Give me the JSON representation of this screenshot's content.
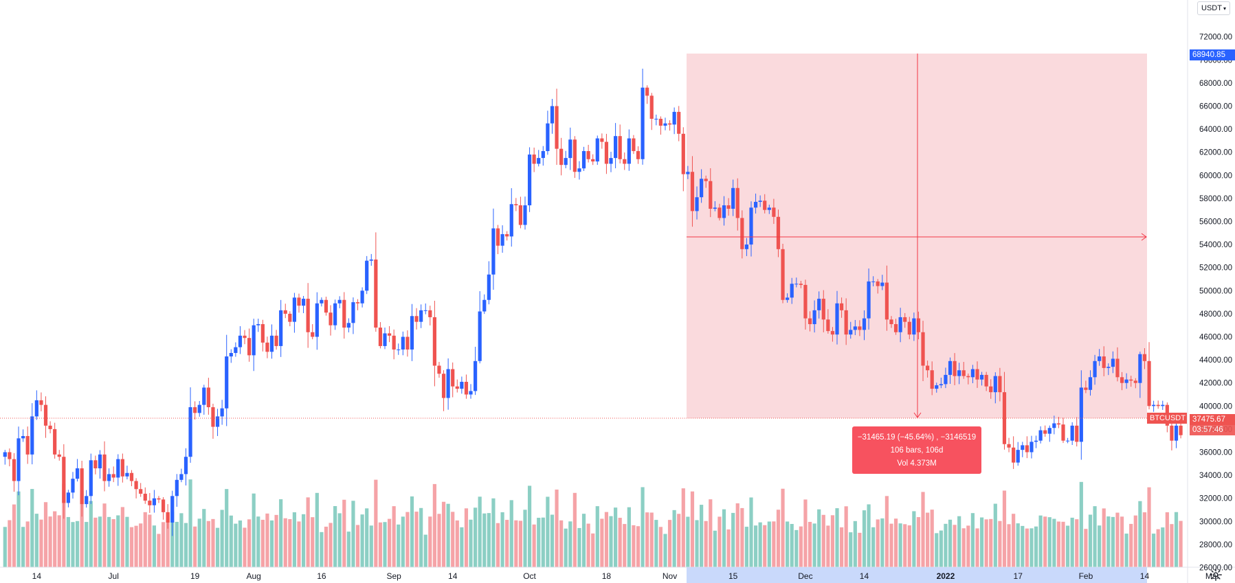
{
  "chart_data": {
    "type": "candlestick",
    "symbol": "BTCUSDT",
    "currency_label": "USDT",
    "y_axis": {
      "min": 25000,
      "max": 72000,
      "ticks": [
        26000,
        28000,
        30000,
        32000,
        34000,
        36000,
        38000,
        40000,
        42000,
        44000,
        46000,
        48000,
        50000,
        52000,
        54000,
        56000,
        58000,
        60000,
        62000,
        64000,
        66000,
        68000,
        70000,
        72000
      ]
    },
    "x_axis": {
      "first_date": "2021-06-07",
      "last_date": "2022-02-24",
      "ticks": [
        {
          "label": "14",
          "date": "2021-06-14"
        },
        {
          "label": "Jul",
          "date": "2021-07-01"
        },
        {
          "label": "19",
          "date": "2021-07-19"
        },
        {
          "label": "Aug",
          "date": "2021-08-01"
        },
        {
          "label": "16",
          "date": "2021-08-16"
        },
        {
          "label": "Sep",
          "date": "2021-09-01"
        },
        {
          "label": "14",
          "date": "2021-09-14"
        },
        {
          "label": "Oct",
          "date": "2021-10-01"
        },
        {
          "label": "18",
          "date": "2021-10-18"
        },
        {
          "label": "Nov",
          "date": "2021-11-01"
        },
        {
          "label": "15",
          "date": "2021-11-15"
        },
        {
          "label": "Dec",
          "date": "2021-12-01"
        },
        {
          "label": "14",
          "date": "2021-12-14"
        },
        {
          "label": "2022",
          "date": "2022-01-01"
        },
        {
          "label": "17",
          "date": "2022-01-17"
        },
        {
          "label": "Feb",
          "date": "2022-02-01"
        },
        {
          "label": "14",
          "date": "2022-02-14"
        },
        {
          "label": "Mar",
          "date": "2022-03-01"
        }
      ]
    },
    "closes": [
      36000,
      35400,
      33500,
      37200,
      37400,
      35800,
      39100,
      40500,
      40100,
      38300,
      38000,
      35800,
      35600,
      31600,
      32500,
      33700,
      34600,
      31500,
      32200,
      35300,
      34600,
      35800,
      33500,
      34100,
      33800,
      35400,
      33900,
      34200,
      33500,
      32800,
      32400,
      31800,
      31400,
      32000,
      31900,
      30800,
      29900,
      32200,
      33600,
      34100,
      35600,
      39900,
      39400,
      40100,
      41600,
      39900,
      38200,
      39100,
      39800,
      44300,
      44600,
      45100,
      46100,
      45900,
      44400,
      47000,
      47100,
      45500,
      44700,
      46100,
      45200,
      48300,
      48000,
      47300,
      49400,
      48700,
      49300,
      46400,
      46000,
      48900,
      49200,
      48100,
      47000,
      48900,
      49200,
      46800,
      47200,
      49000,
      48900,
      50000,
      52600,
      52700,
      46800,
      45200,
      46300,
      46100,
      44900,
      44900,
      46000,
      44900,
      47800,
      47300,
      48300,
      48300,
      47700,
      43500,
      42800,
      40700,
      43200,
      41700,
      41500,
      42100,
      41000,
      41300,
      43900,
      48200,
      49200,
      51400,
      55400,
      53900,
      54900,
      54700,
      57500,
      57400,
      55700,
      57400,
      61800,
      61000,
      61500,
      62100,
      64500,
      66000,
      62300,
      60900,
      61500,
      63100,
      60300,
      60600,
      62100,
      61400,
      61200,
      63200,
      62900,
      61000,
      61500,
      63400,
      61400,
      61000,
      63200,
      62100,
      61400,
      67600,
      66900,
      64900,
      64900,
      64300,
      64500,
      64400,
      65500,
      63600,
      60100,
      60300,
      56900,
      58100,
      59700,
      59500,
      57100,
      57200,
      56300,
      57400,
      57100,
      58900,
      56300,
      53600,
      54000,
      57200,
      57700,
      57800,
      57000,
      57200,
      56400,
      53600,
      49200,
      49400,
      50600,
      50600,
      50500,
      47600,
      47100,
      48300,
      49300,
      47500,
      46500,
      46200,
      48900,
      48300,
      46200,
      46600,
      46900,
      46600,
      47600,
      50800,
      50800,
      50400,
      50700,
      47500,
      47100,
      46400,
      47700,
      47300,
      46200,
      47600,
      46400,
      43500,
      43100,
      41500,
      41800,
      41900,
      42700,
      43900,
      42600,
      43100,
      42600,
      42500,
      43200,
      42300,
      42700,
      41700,
      41200,
      42600,
      41200,
      36700,
      36400,
      35100,
      36200,
      36600,
      36000,
      36900,
      37000,
      37900,
      37600,
      38100,
      38500,
      38400,
      37000,
      37000,
      38300,
      36900,
      41600,
      41400,
      42500,
      43900,
      44300,
      43300,
      43400,
      44100,
      42500,
      42000,
      42300,
      42200,
      42000,
      44500,
      43900,
      40000,
      40100,
      40000,
      40100,
      38300,
      37000,
      38300,
      37475
    ]
  },
  "measure": {
    "line1": "−31465.19 (−45.64%) , −3146519",
    "line2": "106 bars, 106d",
    "line3": "Vol 4.373M"
  },
  "price_tags": {
    "high_label": "68940.85",
    "last_price": "37475.67",
    "countdown": "03:57:46",
    "symbol_label": "BTCUSDT"
  },
  "colors": {
    "up": "#2962ff",
    "down": "#ef5350",
    "vol_up": "#8ccfc4",
    "vol_down": "#f5a3a7",
    "range_fill": "#fadadd",
    "range_axis_highlight": "#c9d9fb"
  },
  "icons": {
    "settings": "gear-icon"
  }
}
